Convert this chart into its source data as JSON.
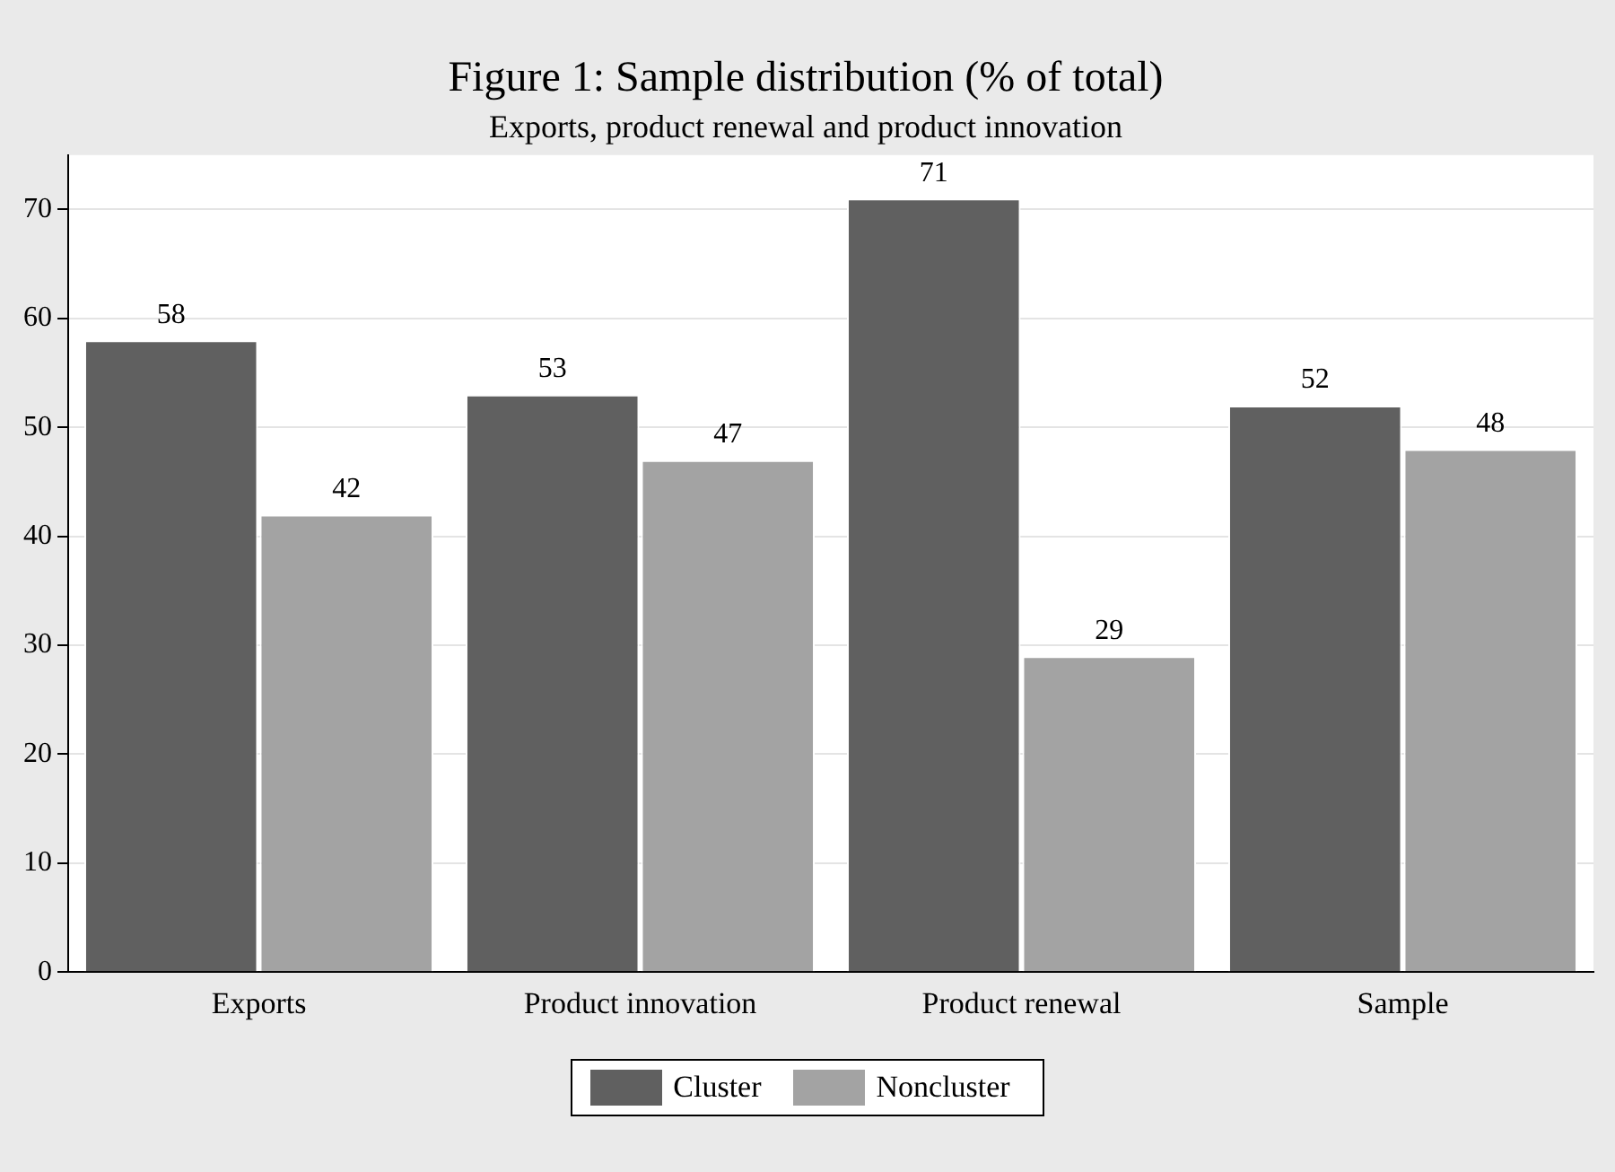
{
  "chart_data": {
    "type": "bar",
    "title": "Figure 1: Sample distribution (% of total)",
    "subtitle": "Exports, product renewal and product innovation",
    "categories": [
      "Exports",
      "Product innovation",
      "Product renewal",
      "Sample"
    ],
    "series": [
      {
        "name": "Cluster",
        "color": "#606060",
        "values": [
          58,
          53,
          71,
          52
        ]
      },
      {
        "name": "Noncluster",
        "color": "#a3a3a3",
        "values": [
          42,
          47,
          29,
          48
        ]
      }
    ],
    "ylim": [
      0,
      75
    ],
    "yticks": [
      0,
      10,
      20,
      30,
      40,
      50,
      60,
      70
    ],
    "grid": "y",
    "legend": "bottom",
    "data_labels": true
  }
}
